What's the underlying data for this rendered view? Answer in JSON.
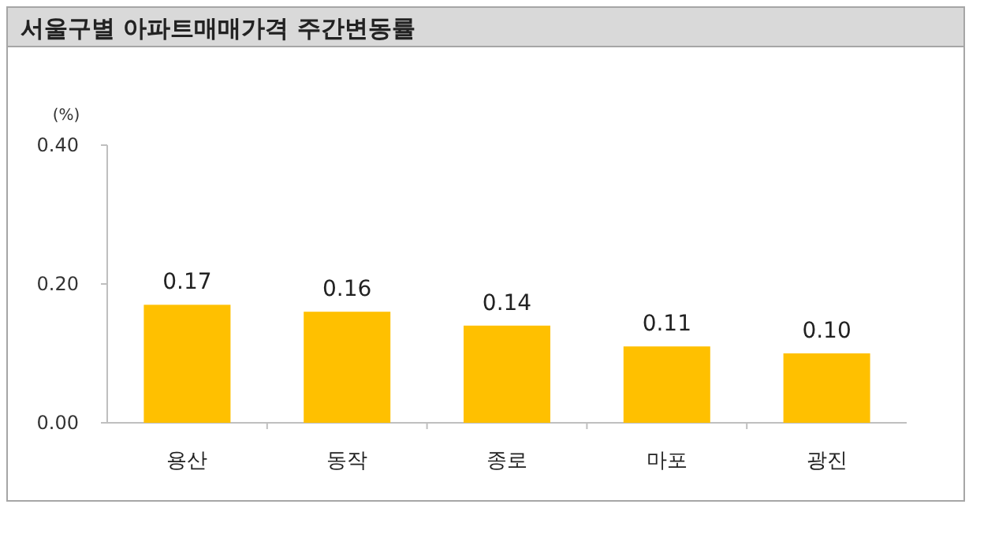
{
  "chart_data": {
    "type": "bar",
    "title": "서울구별 아파트매매가격 주간변동률",
    "ylabel": "(%)",
    "categories": [
      "용산",
      "동작",
      "종로",
      "마포",
      "광진"
    ],
    "values": [
      0.17,
      0.16,
      0.14,
      0.11,
      0.1
    ],
    "value_labels": [
      "0.17",
      "0.16",
      "0.14",
      "0.11",
      "0.10"
    ],
    "color": "#ffc000",
    "ylim": [
      0,
      0.4
    ],
    "yticks": [
      {
        "value": 0,
        "label": "0.00"
      },
      {
        "value": 0.2,
        "label": "0.20"
      },
      {
        "value": 0.4,
        "label": "0.40"
      }
    ],
    "grid": false
  }
}
